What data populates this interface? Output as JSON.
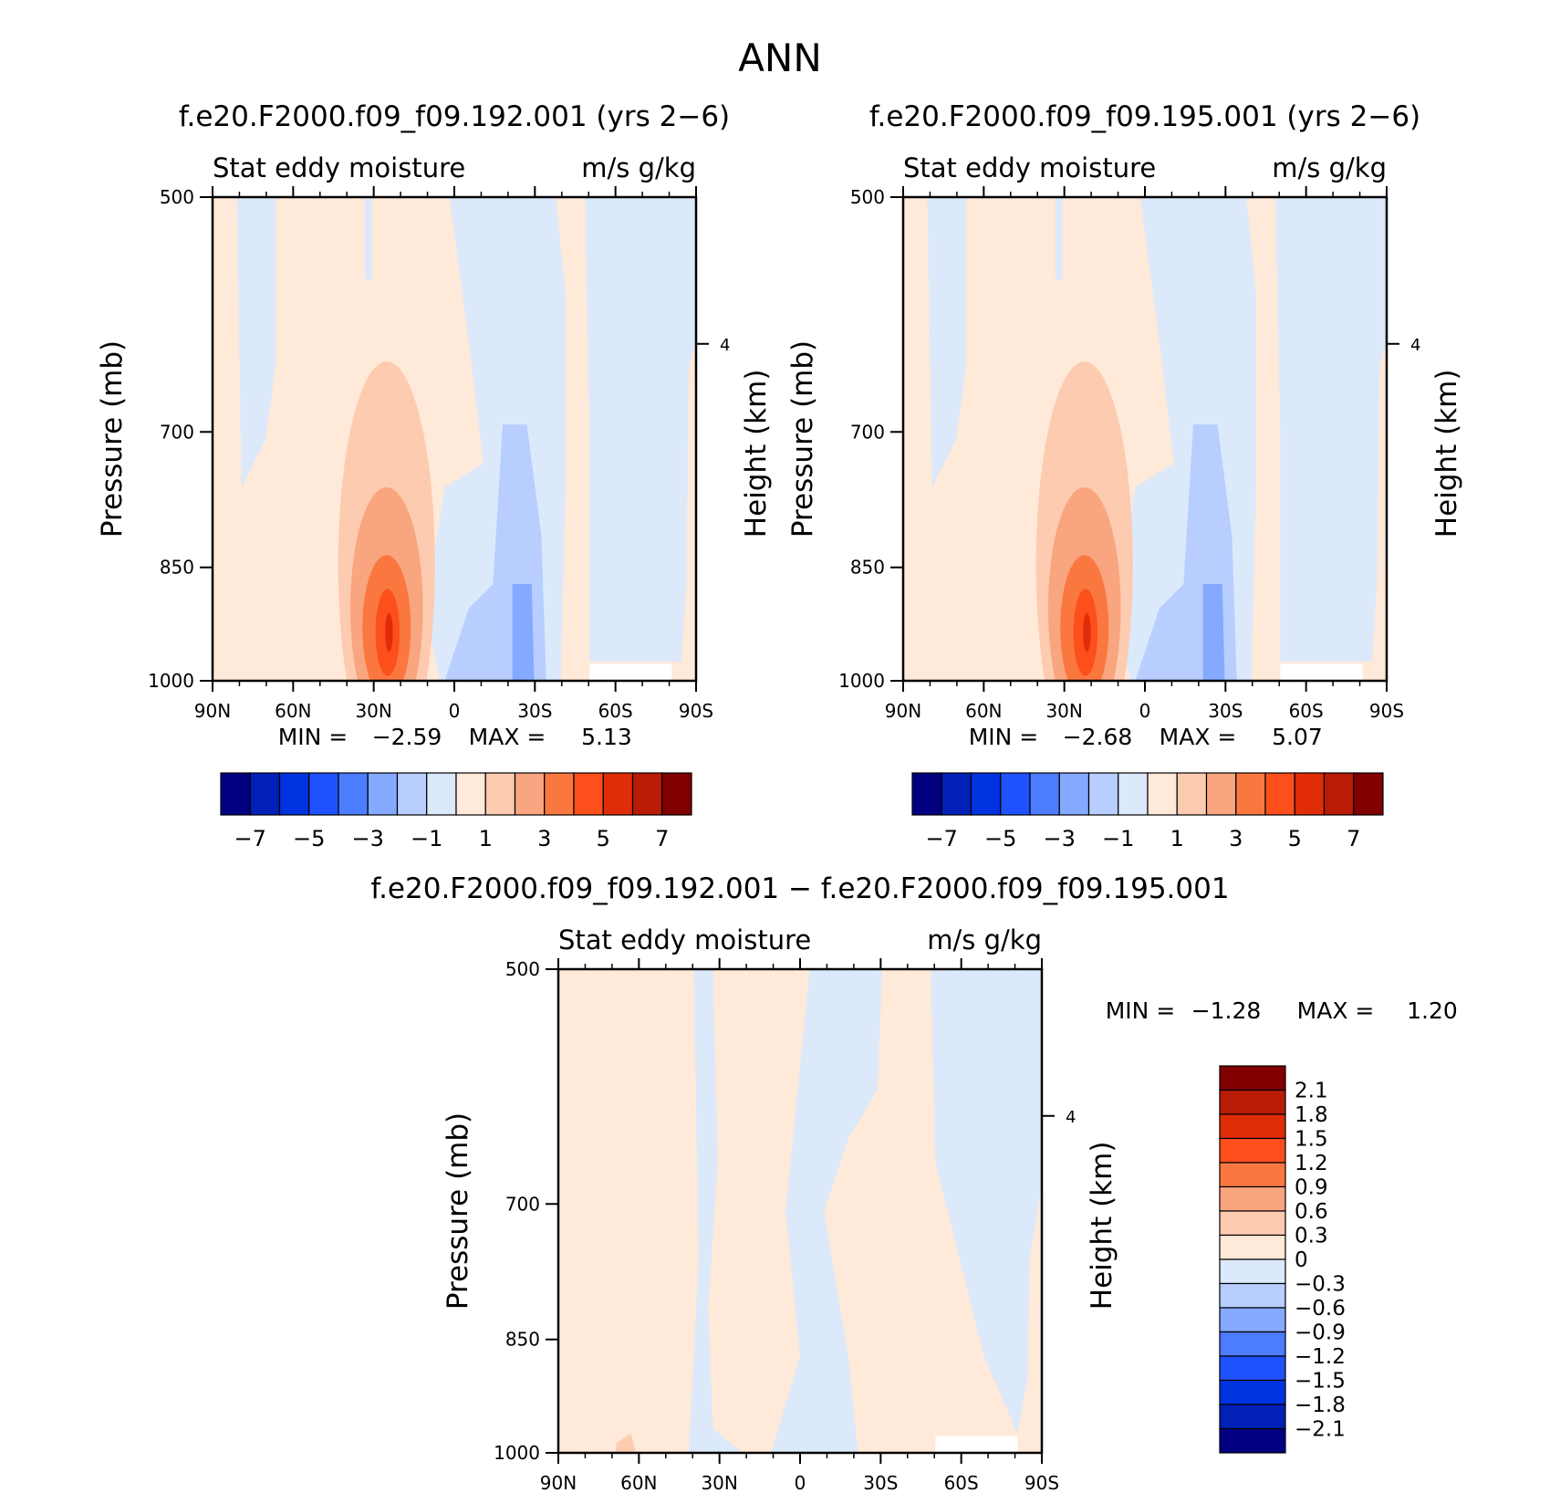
{
  "figure": {
    "title": "ANN"
  },
  "colors": {
    "main_levels": [
      "#000080",
      "#0020b8",
      "#0033e0",
      "#1f52ff",
      "#4c7cff",
      "#85a9ff",
      "#b7ceff",
      "#dbe9fb",
      "#ffe9d8",
      "#fccbb0",
      "#f9a580",
      "#fa7840",
      "#fd4f1c",
      "#e12c08",
      "#b91b05",
      "#800000"
    ],
    "diff_levels": [
      "#000080",
      "#0020b8",
      "#0033e0",
      "#1f52ff",
      "#4c7cff",
      "#85a9ff",
      "#b7ceff",
      "#dbe9fb",
      "#ffe9d8",
      "#fccbb0",
      "#f9a580",
      "#fa7840",
      "#fd4f1c",
      "#e12c08",
      "#b91b05",
      "#800000"
    ]
  },
  "panels": [
    {
      "id": "p1",
      "title": "f.e20.F2000.f09_f09.192.001 (yrs 2-6)",
      "left_label": "Stat eddy moisture",
      "right_label": "m/s g/kg",
      "ylabel": "Pressure (mb)",
      "ylabel_right": "Height (km)",
      "yticks": [
        "500",
        "700",
        "850",
        "1000"
      ],
      "ytick_right": "4",
      "xticks": [
        "90N",
        "60N",
        "30N",
        "0",
        "30S",
        "60S",
        "90S"
      ],
      "min_label": "MIN =",
      "min_value": "-2.59",
      "max_label": "MAX =",
      "max_value": "5.13"
    },
    {
      "id": "p2",
      "title": "f.e20.F2000.f09_f09.195.001 (yrs 2-6)",
      "left_label": "Stat eddy moisture",
      "right_label": "m/s g/kg",
      "ylabel": "Pressure (mb)",
      "ylabel_right": "Height (km)",
      "yticks": [
        "500",
        "700",
        "850",
        "1000"
      ],
      "ytick_right": "4",
      "xticks": [
        "90N",
        "60N",
        "30N",
        "0",
        "30S",
        "60S",
        "90S"
      ],
      "min_label": "MIN =",
      "min_value": "-2.68",
      "max_label": "MAX =",
      "max_value": "5.07"
    },
    {
      "id": "p3",
      "title": "f.e20.F2000.f09_f09.192.001 - f.e20.F2000.f09_f09.195.001",
      "left_label": "Stat eddy moisture",
      "right_label": "m/s g/kg",
      "ylabel": "Pressure (mb)",
      "ylabel_right": "Height (km)",
      "yticks": [
        "500",
        "700",
        "850",
        "1000"
      ],
      "ytick_right": "4",
      "xticks": [
        "90N",
        "60N",
        "30N",
        "0",
        "30S",
        "60S",
        "90S"
      ],
      "min_label": "MIN =",
      "min_value": "-1.28",
      "max_label": "MAX =",
      "max_value": "1.20"
    }
  ],
  "colorbars": {
    "main_labels": [
      "-7",
      "-5",
      "-3",
      "-1",
      "1",
      "3",
      "5",
      "7"
    ],
    "diff_labels": [
      "2.1",
      "1.8",
      "1.5",
      "1.2",
      "0.9",
      "0.6",
      "0.3",
      "0",
      "-0.3",
      "-0.6",
      "-0.9",
      "-1.2",
      "-1.5",
      "-1.8",
      "-2.1"
    ]
  },
  "chart_data": [
    {
      "type": "heatmap",
      "title": "f.e20.F2000.f09_f09.192.001 (yrs 2-6)",
      "variable": "Stat eddy moisture",
      "units": "m/s g/kg",
      "xlabel": "",
      "ylabel": "Pressure (mb)",
      "xlim": [
        "90N",
        "90S"
      ],
      "ylim": [
        500,
        1000
      ],
      "y_scale": "log-pressure",
      "contour_levels": [
        -7,
        -6,
        -5,
        -4,
        -3,
        -2,
        -1,
        0,
        1,
        2,
        3,
        4,
        5,
        6,
        7
      ],
      "min": -2.59,
      "max": 5.13,
      "features": [
        {
          "desc": "positive maximum near 25N, 900-950 mb",
          "value": 5.13
        },
        {
          "desc": "negative minimum near 25S, 900-1000 mb",
          "value": -2.59
        }
      ]
    },
    {
      "type": "heatmap",
      "title": "f.e20.F2000.f09_f09.195.001 (yrs 2-6)",
      "variable": "Stat eddy moisture",
      "units": "m/s g/kg",
      "xlabel": "",
      "ylabel": "Pressure (mb)",
      "xlim": [
        "90N",
        "90S"
      ],
      "ylim": [
        500,
        1000
      ],
      "y_scale": "log-pressure",
      "contour_levels": [
        -7,
        -6,
        -5,
        -4,
        -3,
        -2,
        -1,
        0,
        1,
        2,
        3,
        4,
        5,
        6,
        7
      ],
      "min": -2.68,
      "max": 5.07,
      "features": [
        {
          "desc": "positive maximum near 28N, 900-950 mb",
          "value": 5.07
        },
        {
          "desc": "negative minimum near 25S, 900-1000 mb",
          "value": -2.68
        }
      ]
    },
    {
      "type": "heatmap",
      "title": "f.e20.F2000.f09_f09.192.001 - f.e20.F2000.f09_f09.195.001",
      "variable": "Stat eddy moisture",
      "units": "m/s g/kg",
      "xlabel": "",
      "ylabel": "Pressure (mb)",
      "xlim": [
        "90N",
        "90S"
      ],
      "ylim": [
        500,
        1000
      ],
      "y_scale": "log-pressure",
      "contour_levels": [
        -2.1,
        -1.8,
        -1.5,
        -1.2,
        -0.9,
        -0.6,
        -0.3,
        0,
        0.3,
        0.6,
        0.9,
        1.2,
        1.5,
        1.8,
        2.1
      ],
      "min": -1.28,
      "max": 1.2
    }
  ]
}
